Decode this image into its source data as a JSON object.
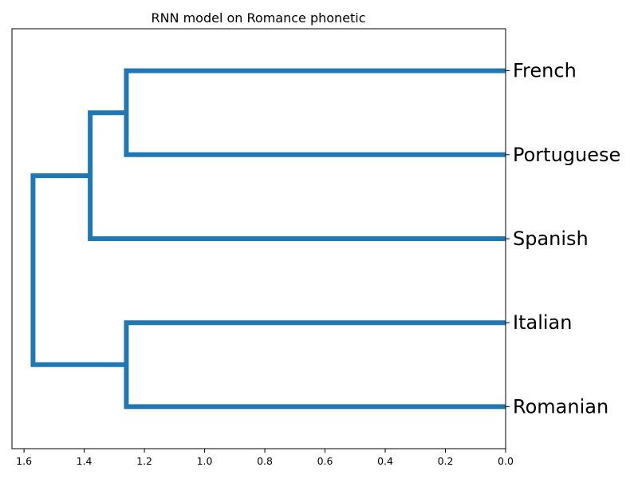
{
  "chart_data": {
    "type": "dendrogram",
    "title": "RNN model on Romance phonetic",
    "orientation": "left",
    "xlim": [
      1.64,
      0.0
    ],
    "xticks": [
      1.6,
      1.4,
      1.2,
      1.0,
      0.8,
      0.6,
      0.4,
      0.2,
      0.0
    ],
    "xtick_labels": [
      "1.6",
      "1.4",
      "1.2",
      "1.0",
      "0.8",
      "0.6",
      "0.4",
      "0.2",
      "0.0"
    ],
    "leaves": [
      "French",
      "Portuguese",
      "Spanish",
      "Italian",
      "Romanian"
    ],
    "merges": [
      {
        "children": [
          "French",
          "Portuguese"
        ],
        "height": 1.26
      },
      {
        "children": [
          "French+Portuguese",
          "Spanish"
        ],
        "height": 1.38
      },
      {
        "children": [
          "Italian",
          "Romanian"
        ],
        "height": 1.26
      },
      {
        "children": [
          "French+Portuguese+Spanish",
          "Italian+Romanian"
        ],
        "height": 1.57
      }
    ],
    "line_color": "#1f77b4"
  }
}
